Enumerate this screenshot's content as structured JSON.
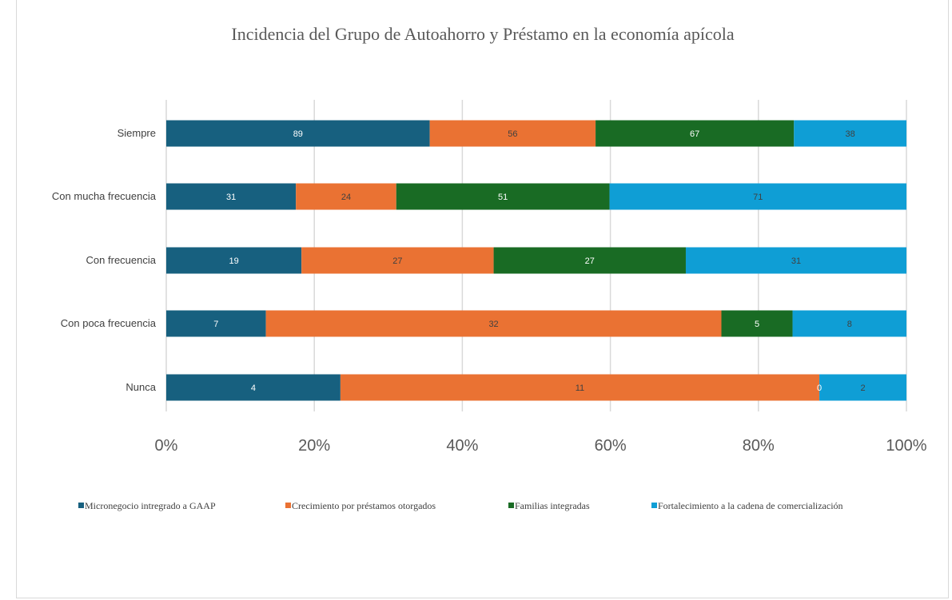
{
  "chart_data": {
    "type": "bar",
    "orientation": "horizontal",
    "stacking": "percent",
    "title": "Incidencia del Grupo de Autoahorro y Préstamo en la economía apícola",
    "categories": [
      "Siempre",
      "Con mucha frecuencia",
      "Con frecuencia",
      "Con poca frecuencia",
      "Nunca"
    ],
    "series": [
      {
        "name": "Micronegocio intregrado a GAAP",
        "color": "#17607f",
        "label_color": "#ffffff",
        "values": [
          89,
          31,
          19,
          7,
          4
        ]
      },
      {
        "name": "Crecimiento por préstamos otorgados",
        "color": "#ea7233",
        "label_color": "#404040",
        "values": [
          56,
          24,
          27,
          32,
          11
        ]
      },
      {
        "name": "Familias integradas",
        "color": "#196b24",
        "label_color": "#ffffff",
        "values": [
          67,
          51,
          27,
          5,
          0
        ]
      },
      {
        "name": "Fortalecimiento a la cadena de comercialización",
        "color": "#0f9ed5",
        "label_color": "#404040",
        "values": [
          38,
          71,
          31,
          8,
          2
        ]
      }
    ],
    "xlim": [
      0,
      100
    ],
    "x_ticks": [
      "0%",
      "20%",
      "40%",
      "60%",
      "80%",
      "100%"
    ],
    "grid": true,
    "legend": "bottom"
  }
}
